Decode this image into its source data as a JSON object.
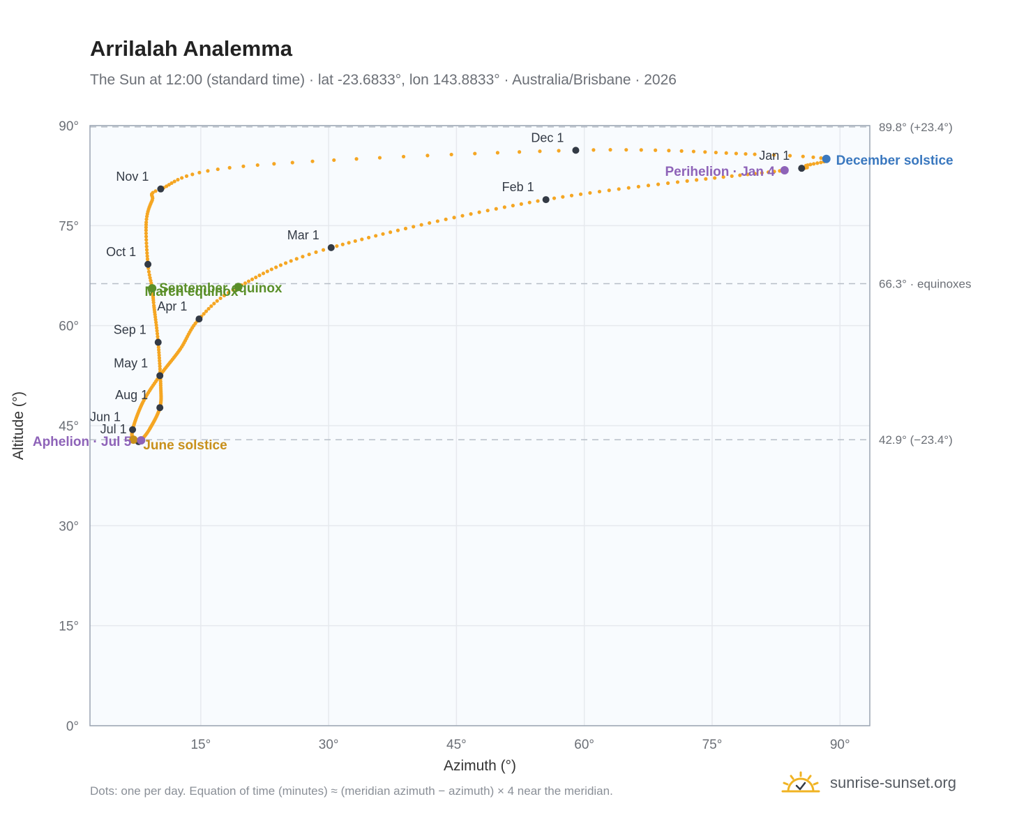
{
  "header": {
    "title": "Arrilalah Analemma",
    "subtitle": "The Sun at 12:00 (standard time) · lat -23.6833°, lon 143.8833° · Australia/Brisbane · 2026"
  },
  "footer": {
    "note": "Dots: one per day. Equation of time (minutes) ≈ (meridian azimuth − azimuth) × 4 near the meridian.",
    "brand": "sunrise-sunset.org"
  },
  "colors": {
    "analemma": "#f5a623",
    "month_marker": "#333a45",
    "equinox": "#5a8f29",
    "june_solstice": "#c8901a",
    "december_solstice": "#3a78bf",
    "apsis": "#8e63b8",
    "plot_background": "#f8fbfe",
    "grid": "#e6e9ee",
    "reference_line": "#b7bec8",
    "axis_text": "#6b6f76",
    "brand_icon": "#f0b323"
  },
  "chart_data": {
    "type": "scatter",
    "title": "Arrilalah Analemma",
    "xlabel": "Azimuth (°)",
    "ylabel": "Altitude (°)",
    "xlim": [
      2,
      93.5
    ],
    "ylim": [
      0,
      90
    ],
    "xticks": [
      15,
      30,
      45,
      60,
      75,
      90
    ],
    "xtick_labels": [
      "15°",
      "30°",
      "45°",
      "60°",
      "75°",
      "90°"
    ],
    "yticks": [
      0,
      15,
      30,
      45,
      60,
      75,
      90
    ],
    "ytick_labels": [
      "0°",
      "15°",
      "30°",
      "45°",
      "60°",
      "75°",
      "90°"
    ],
    "grid": true,
    "series": [
      {
        "points": [
          {
            "date": "Jan 1",
            "az": 85.5,
            "alt": 83.6
          },
          {
            "date": "Jan 4",
            "az": 83.5,
            "alt": 83.3
          },
          {
            "date": "Feb 1",
            "az": 55.5,
            "alt": 78.9
          },
          {
            "date": "Mar 1",
            "az": 30.3,
            "alt": 71.7
          },
          {
            "date": "Mar 20",
            "az": 19.4,
            "alt": 65.8
          },
          {
            "date": "Apr 1",
            "az": 14.8,
            "alt": 61.0
          },
          {
            "date": "Apr 15",
            "az": 12.6,
            "alt": 56.5
          },
          {
            "date": "May 1",
            "az": 10.2,
            "alt": 52.5
          },
          {
            "date": "May 15",
            "az": 8.2,
            "alt": 48.5
          },
          {
            "date": "Jun 1",
            "az": 7.0,
            "alt": 44.4
          },
          {
            "date": "Jun 21",
            "az": 7.1,
            "alt": 42.9
          },
          {
            "date": "Jul 1",
            "az": 7.7,
            "alt": 42.6
          },
          {
            "date": "Jul 5",
            "az": 8.0,
            "alt": 42.8
          },
          {
            "date": "Jul 15",
            "az": 9.0,
            "alt": 44.5
          },
          {
            "date": "Aug 1",
            "az": 10.2,
            "alt": 47.7
          },
          {
            "date": "Aug 15",
            "az": 10.3,
            "alt": 51.0
          },
          {
            "date": "Sep 1",
            "az": 10.0,
            "alt": 57.5
          },
          {
            "date": "Sep 15",
            "az": 9.5,
            "alt": 63.0
          },
          {
            "date": "Sep 23",
            "az": 9.3,
            "alt": 65.6
          },
          {
            "date": "Oct 1",
            "az": 8.8,
            "alt": 69.2
          },
          {
            "date": "Oct 15",
            "az": 8.6,
            "alt": 75.5
          },
          {
            "date": "Oct 25",
            "az": 9.3,
            "alt": 78.8
          },
          {
            "date": "Nov 1",
            "az": 10.3,
            "alt": 80.5
          },
          {
            "date": "Nov 15",
            "az": 20.0,
            "alt": 83.9
          },
          {
            "date": "Dec 1",
            "az": 59.0,
            "alt": 86.3
          },
          {
            "date": "Dec 15",
            "az": 80.0,
            "alt": 85.7
          },
          {
            "date": "Dec 21",
            "az": 88.4,
            "alt": 85.0
          },
          {
            "date": "Dec 31",
            "az": 86.0,
            "alt": 84.0
          }
        ]
      }
    ],
    "month_markers": [
      {
        "label": "Jan 1",
        "az": 85.5,
        "alt": 83.6
      },
      {
        "label": "Feb 1",
        "az": 55.5,
        "alt": 78.9
      },
      {
        "label": "Mar 1",
        "az": 30.3,
        "alt": 71.7
      },
      {
        "label": "Apr 1",
        "az": 14.8,
        "alt": 61.0
      },
      {
        "label": "May 1",
        "az": 10.2,
        "alt": 52.5
      },
      {
        "label": "Jun 1",
        "az": 7.0,
        "alt": 44.4
      },
      {
        "label": "Jul 1",
        "az": 7.7,
        "alt": 42.6
      },
      {
        "label": "Aug 1",
        "az": 10.2,
        "alt": 47.7
      },
      {
        "label": "Sep 1",
        "az": 10.0,
        "alt": 57.5
      },
      {
        "label": "Oct 1",
        "az": 8.8,
        "alt": 69.2
      },
      {
        "label": "Nov 1",
        "az": 10.3,
        "alt": 80.5
      },
      {
        "label": "Dec 1",
        "az": 59.0,
        "alt": 86.3
      }
    ],
    "events": [
      {
        "label": "March equinox",
        "az": 19.4,
        "alt": 65.8,
        "kind": "equinox"
      },
      {
        "label": "September equinox",
        "az": 9.3,
        "alt": 65.6,
        "kind": "equinox"
      },
      {
        "label": "June solstice",
        "az": 7.1,
        "alt": 42.9,
        "kind": "june_solstice"
      },
      {
        "label": "December solstice",
        "az": 88.4,
        "alt": 85.0,
        "kind": "december_solstice"
      },
      {
        "label": "Aphelion · Jul 5",
        "az": 8.0,
        "alt": 42.8,
        "kind": "apsis"
      },
      {
        "label": "Perihelion · Jan 4",
        "az": 83.5,
        "alt": 83.3,
        "kind": "apsis"
      }
    ],
    "reference_lines": [
      {
        "alt": 89.8,
        "label": "89.8° (+23.4°)"
      },
      {
        "alt": 66.3,
        "label": "66.3° · equinoxes"
      },
      {
        "alt": 42.9,
        "label": "42.9° (−23.4°)"
      }
    ]
  }
}
